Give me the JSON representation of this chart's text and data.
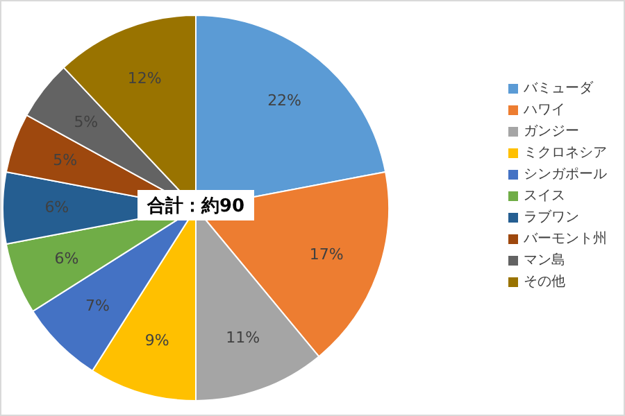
{
  "chart_data": {
    "type": "pie",
    "categories": [
      "バミューダ",
      "ハワイ",
      "ガンジー",
      "ミクロネシア",
      "シンガポール",
      "スイス",
      "ラブワン",
      "バーモント州",
      "マン島",
      "その他"
    ],
    "values": [
      22,
      17,
      11,
      9,
      7,
      6,
      6,
      5,
      5,
      12
    ],
    "colors": [
      "#5b9bd5",
      "#ed7d31",
      "#a5a5a5",
      "#ffc000",
      "#4472c4",
      "#70ad47",
      "#255e91",
      "#9e480e",
      "#636363",
      "#997300"
    ],
    "value_labels": [
      "22%",
      "17%",
      "11%",
      "9%",
      "7%",
      "6%",
      "6%",
      "5%",
      "5%",
      "12%"
    ],
    "legend": "right",
    "annotations": [
      "合計：約90"
    ]
  }
}
